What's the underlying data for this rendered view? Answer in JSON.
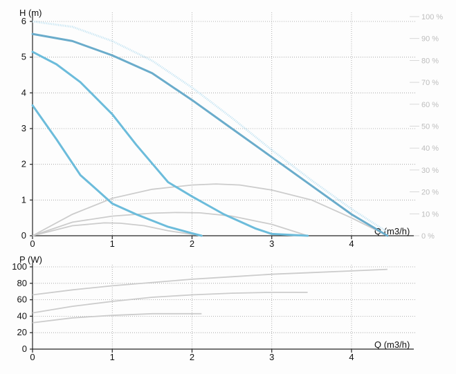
{
  "chart_data": [
    {
      "type": "line",
      "ylabel": "H (m)",
      "xlabel": "Q (m3/h)",
      "xlim": [
        0,
        4.8
      ],
      "ylim": [
        0,
        6
      ],
      "x_ticks": [
        "0",
        "1",
        "2",
        "3",
        "4"
      ],
      "y_ticks": [
        "0",
        "1",
        "2",
        "3",
        "4",
        "5",
        "6"
      ],
      "right_ticks": [
        "0 %",
        "10 %",
        "20 %",
        "30 %",
        "40 %",
        "50 %",
        "60 %",
        "70 %",
        "80 %",
        "90 %",
        "100 %"
      ],
      "grid": true,
      "colors": {
        "head": "#6cbcdb",
        "head_max": "#6aaccb",
        "efficiency": "#cccccc",
        "hmax_dotted": "#bfe2f2"
      },
      "head_curves": [
        {
          "x": [
            0,
            0.5,
            1.0,
            1.5,
            2.0,
            2.5,
            3.0,
            3.5,
            4.0,
            4.45
          ],
          "y": [
            5.65,
            5.45,
            5.05,
            4.55,
            3.8,
            3.0,
            2.2,
            1.4,
            0.6,
            0.0
          ]
        },
        {
          "x": [
            0,
            0.3,
            0.6,
            1.0,
            1.3,
            1.7,
            2.0,
            2.4,
            2.8,
            3.0,
            3.45
          ],
          "y": [
            5.15,
            4.8,
            4.3,
            3.4,
            2.55,
            1.5,
            1.1,
            0.6,
            0.2,
            0.05,
            0.0
          ]
        },
        {
          "x": [
            0,
            0.3,
            0.6,
            0.8,
            1.0,
            1.3,
            1.7,
            2.0,
            2.12
          ],
          "y": [
            3.65,
            2.7,
            1.7,
            1.3,
            0.9,
            0.6,
            0.25,
            0.07,
            0.0
          ]
        }
      ],
      "hmax_dotted": {
        "x": [
          0,
          0.5,
          1.0,
          1.5,
          2.0,
          2.5,
          3.0,
          3.5,
          4.0,
          4.45
        ],
        "y": [
          6.0,
          5.85,
          5.45,
          4.9,
          4.15,
          3.3,
          2.4,
          1.55,
          0.75,
          0.1
        ]
      },
      "efficiency_curves": [
        {
          "x": [
            0,
            0.5,
            1.0,
            1.5,
            2.0,
            2.3,
            2.6,
            3.0,
            3.5,
            4.0,
            4.45
          ],
          "y": [
            0,
            0.6,
            1.05,
            1.3,
            1.42,
            1.45,
            1.42,
            1.28,
            1.0,
            0.5,
            0.0
          ]
        },
        {
          "x": [
            0,
            0.5,
            1.0,
            1.5,
            1.8,
            2.1,
            2.5,
            3.0,
            3.45
          ],
          "y": [
            0,
            0.38,
            0.55,
            0.63,
            0.65,
            0.64,
            0.55,
            0.32,
            0.0
          ]
        },
        {
          "x": [
            0,
            0.5,
            0.9,
            1.1,
            1.4,
            1.7,
            2.12
          ],
          "y": [
            0,
            0.28,
            0.36,
            0.35,
            0.28,
            0.14,
            0.0
          ]
        }
      ]
    },
    {
      "type": "line",
      "ylabel": "P (W)",
      "xlabel": "Q (m3/h)",
      "xlim": [
        0,
        4.8
      ],
      "ylim": [
        0,
        100
      ],
      "x_ticks": [
        "0",
        "1",
        "2",
        "3",
        "4"
      ],
      "y_ticks": [
        "0",
        "20",
        "40",
        "60",
        "80",
        "100"
      ],
      "grid": true,
      "colors": {
        "power": "#cccccc"
      },
      "power_curves": [
        {
          "x": [
            0,
            0.5,
            1.0,
            1.5,
            2.0,
            2.5,
            3.0,
            3.5,
            4.0,
            4.45
          ],
          "y": [
            66,
            72,
            77,
            81,
            85,
            88,
            91,
            93,
            95,
            97
          ]
        },
        {
          "x": [
            0,
            0.5,
            1.0,
            1.5,
            2.0,
            2.5,
            3.0,
            3.45
          ],
          "y": [
            44,
            52,
            58,
            63,
            66,
            68,
            69,
            69
          ]
        },
        {
          "x": [
            0,
            0.5,
            1.0,
            1.5,
            2.12
          ],
          "y": [
            32,
            38,
            41,
            43,
            43
          ]
        }
      ]
    }
  ]
}
